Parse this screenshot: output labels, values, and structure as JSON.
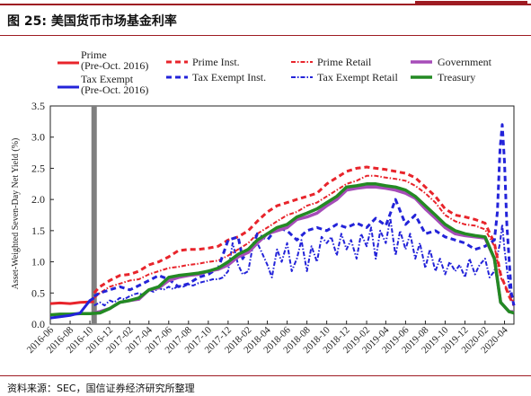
{
  "header": {
    "figure_title": "图 25: 美国货币市场基金利率",
    "source": "资料来源：SEC，国信证券经济研究所整理"
  },
  "colors": {
    "accent_rule": "#9e1b22",
    "prime": "#e8242b",
    "prime_inst": "#e8242b",
    "prime_retail": "#e8242b",
    "government": "#a64cb8",
    "tax_exempt": "#2323d9",
    "tax_exempt_inst": "#2323d9",
    "tax_exempt_retail": "#2323d9",
    "treasury": "#238a23",
    "divider": "#7f7f7f"
  },
  "chart_data": {
    "type": "line",
    "ylabel": "Asset-Weighted Seven-Day Net Yield (%)",
    "ylim": [
      0,
      3.5
    ],
    "yticks": [
      "0.0",
      "0.5",
      "1.0",
      "1.5",
      "2.0",
      "2.5",
      "3.0",
      "3.5"
    ],
    "xticks": [
      "2016-06",
      "2016-08",
      "2016-10",
      "2016-12",
      "2017-02",
      "2017-04",
      "2017-06",
      "2017-08",
      "2017-10",
      "2017-12",
      "2018-02",
      "2018-04",
      "2018-06",
      "2018-08",
      "2018-10",
      "2018-12",
      "2019-02",
      "2019-04",
      "2019-06",
      "2019-08",
      "2019-10",
      "2019-12",
      "2020-02",
      "2020-04"
    ],
    "x_start": "2016-06-01",
    "x_end": "2020-04-30",
    "reform_date": "2016-10-14",
    "grid": false,
    "legend_position": "top",
    "series": [
      {
        "name": "Prime (Pre-Oct. 2016)",
        "x": [
          "2016-06-01",
          "2016-07-01",
          "2016-08-01",
          "2016-09-01",
          "2016-10-14"
        ],
        "values": [
          0.33,
          0.34,
          0.33,
          0.35,
          0.36
        ]
      },
      {
        "name": "Prime Inst.",
        "x": [
          "2016-10-14",
          "2016-11-01",
          "2016-12-01",
          "2017-01-01",
          "2017-02-01",
          "2017-03-01",
          "2017-04-01",
          "2017-05-01",
          "2017-06-01",
          "2017-07-01",
          "2017-08-01",
          "2017-09-01",
          "2017-10-01",
          "2017-11-01",
          "2017-12-01",
          "2018-01-01",
          "2018-02-01",
          "2018-03-01",
          "2018-04-01",
          "2018-05-01",
          "2018-06-01",
          "2018-07-01",
          "2018-08-01",
          "2018-09-01",
          "2018-10-01",
          "2018-11-01",
          "2018-12-01",
          "2019-01-01",
          "2019-02-01",
          "2019-03-01",
          "2019-04-01",
          "2019-05-01",
          "2019-06-01",
          "2019-07-01",
          "2019-08-01",
          "2019-09-01",
          "2019-10-01",
          "2019-11-01",
          "2019-12-01",
          "2020-01-01",
          "2020-02-01",
          "2020-03-01",
          "2020-03-20",
          "2020-04-15",
          "2020-04-30"
        ],
        "values": [
          0.5,
          0.6,
          0.7,
          0.78,
          0.8,
          0.85,
          0.95,
          1.0,
          1.08,
          1.18,
          1.2,
          1.2,
          1.22,
          1.25,
          1.35,
          1.4,
          1.5,
          1.65,
          1.8,
          1.9,
          1.95,
          2.0,
          2.05,
          2.1,
          2.25,
          2.35,
          2.45,
          2.5,
          2.52,
          2.5,
          2.48,
          2.45,
          2.42,
          2.35,
          2.2,
          2.05,
          1.85,
          1.75,
          1.72,
          1.68,
          1.62,
          1.3,
          0.8,
          0.45,
          0.3
        ]
      },
      {
        "name": "Prime Retail",
        "x": [
          "2016-10-14",
          "2016-11-01",
          "2016-12-01",
          "2017-01-01",
          "2017-02-01",
          "2017-03-01",
          "2017-04-01",
          "2017-05-01",
          "2017-06-01",
          "2017-07-01",
          "2017-08-01",
          "2017-09-01",
          "2017-10-01",
          "2017-11-01",
          "2017-12-01",
          "2018-01-01",
          "2018-02-01",
          "2018-03-01",
          "2018-04-01",
          "2018-05-01",
          "2018-06-01",
          "2018-07-01",
          "2018-08-01",
          "2018-09-01",
          "2018-10-01",
          "2018-11-01",
          "2018-12-01",
          "2019-01-01",
          "2019-02-01",
          "2019-03-01",
          "2019-04-01",
          "2019-05-01",
          "2019-06-01",
          "2019-07-01",
          "2019-08-01",
          "2019-09-01",
          "2019-10-01",
          "2019-11-01",
          "2019-12-01",
          "2020-01-01",
          "2020-02-01",
          "2020-03-01",
          "2020-03-20",
          "2020-04-15",
          "2020-04-30"
        ],
        "values": [
          0.42,
          0.5,
          0.6,
          0.65,
          0.7,
          0.72,
          0.8,
          0.85,
          0.9,
          0.92,
          0.95,
          0.97,
          1.0,
          1.02,
          1.1,
          1.2,
          1.3,
          1.45,
          1.55,
          1.65,
          1.75,
          1.8,
          1.9,
          1.95,
          2.05,
          2.15,
          2.25,
          2.3,
          2.38,
          2.38,
          2.35,
          2.33,
          2.3,
          2.22,
          2.1,
          1.95,
          1.75,
          1.65,
          1.6,
          1.58,
          1.52,
          1.25,
          0.75,
          0.5,
          0.35
        ]
      },
      {
        "name": "Government",
        "x": [
          "2016-10-14",
          "2016-11-01",
          "2016-12-01",
          "2017-01-01",
          "2017-02-01",
          "2017-03-01",
          "2017-04-01",
          "2017-05-01",
          "2017-06-01",
          "2017-07-01",
          "2017-08-01",
          "2017-09-01",
          "2017-10-01",
          "2017-11-01",
          "2017-12-01",
          "2018-01-01",
          "2018-02-01",
          "2018-03-01",
          "2018-04-01",
          "2018-05-01",
          "2018-06-01",
          "2018-07-01",
          "2018-08-01",
          "2018-09-01",
          "2018-10-01",
          "2018-11-01",
          "2018-12-01",
          "2019-01-01",
          "2019-02-01",
          "2019-03-01",
          "2019-04-01",
          "2019-05-01",
          "2019-06-01",
          "2019-07-01",
          "2019-08-01",
          "2019-09-01",
          "2019-10-01",
          "2019-11-01",
          "2019-12-01",
          "2020-01-01",
          "2020-02-01",
          "2020-03-01",
          "2020-03-20",
          "2020-04-15",
          "2020-04-30"
        ],
        "values": [
          0.18,
          0.2,
          0.25,
          0.35,
          0.38,
          0.4,
          0.55,
          0.58,
          0.7,
          0.75,
          0.78,
          0.8,
          0.85,
          0.88,
          0.95,
          1.08,
          1.15,
          1.3,
          1.45,
          1.5,
          1.55,
          1.68,
          1.72,
          1.78,
          1.9,
          2.0,
          2.15,
          2.18,
          2.2,
          2.2,
          2.18,
          2.15,
          2.1,
          2.02,
          1.85,
          1.7,
          1.55,
          1.45,
          1.42,
          1.4,
          1.38,
          1.05,
          0.35,
          0.2,
          0.2
        ]
      },
      {
        "name": "Tax Exempt (Pre-Oct. 2016)",
        "x": [
          "2016-06-01",
          "2016-07-01",
          "2016-08-01",
          "2016-09-01",
          "2016-10-01",
          "2016-10-14"
        ],
        "values": [
          0.1,
          0.12,
          0.14,
          0.18,
          0.38,
          0.42
        ]
      },
      {
        "name": "Tax Exempt Inst.",
        "x": [
          "2016-10-14",
          "2016-11-01",
          "2016-12-01",
          "2017-01-01",
          "2017-02-01",
          "2017-03-01",
          "2017-04-01",
          "2017-05-01",
          "2017-06-01",
          "2017-07-01",
          "2017-08-01",
          "2017-09-01",
          "2017-10-01",
          "2017-11-01",
          "2017-12-01",
          "2018-01-01",
          "2018-01-15",
          "2018-02-01",
          "2018-02-15",
          "2018-03-01",
          "2018-04-01",
          "2018-05-01",
          "2018-06-01",
          "2018-07-01",
          "2018-08-01",
          "2018-09-01",
          "2018-10-01",
          "2018-11-01",
          "2018-12-01",
          "2019-01-01",
          "2019-02-01",
          "2019-03-01",
          "2019-04-01",
          "2019-05-01",
          "2019-06-01",
          "2019-07-01",
          "2019-08-01",
          "2019-09-01",
          "2019-10-01",
          "2019-11-01",
          "2019-12-01",
          "2020-01-01",
          "2020-02-01",
          "2020-03-01",
          "2020-03-10",
          "2020-03-18",
          "2020-03-25",
          "2020-04-01",
          "2020-04-08",
          "2020-04-15",
          "2020-04-22",
          "2020-04-30"
        ],
        "values": [
          0.45,
          0.5,
          0.55,
          0.6,
          0.55,
          0.62,
          0.7,
          0.78,
          0.72,
          0.6,
          0.65,
          0.75,
          0.8,
          0.9,
          1.35,
          1.4,
          1.05,
          1.2,
          1.25,
          1.45,
          1.35,
          1.55,
          1.5,
          1.35,
          1.5,
          1.55,
          1.5,
          1.6,
          1.55,
          1.62,
          1.55,
          1.7,
          1.58,
          2.0,
          1.6,
          1.75,
          1.45,
          1.5,
          1.4,
          1.35,
          1.3,
          1.2,
          1.25,
          1.35,
          1.8,
          2.8,
          3.2,
          2.6,
          1.6,
          1.05,
          0.5,
          0.3
        ]
      },
      {
        "name": "Tax Exempt Retail",
        "x": [
          "2016-10-14",
          "2016-11-01",
          "2016-11-15",
          "2016-12-01",
          "2016-12-15",
          "2017-01-01",
          "2017-01-15",
          "2017-02-01",
          "2017-02-15",
          "2017-03-01",
          "2017-03-15",
          "2017-04-01",
          "2017-04-15",
          "2017-05-01",
          "2017-05-15",
          "2017-06-01",
          "2017-06-15",
          "2017-07-01",
          "2017-07-15",
          "2017-08-01",
          "2017-08-15",
          "2017-09-01",
          "2017-09-15",
          "2017-10-01",
          "2017-10-15",
          "2017-11-01",
          "2017-11-15",
          "2017-12-01",
          "2017-12-15",
          "2018-01-01",
          "2018-01-15",
          "2018-02-01",
          "2018-02-15",
          "2018-03-01",
          "2018-03-15",
          "2018-04-01",
          "2018-04-15",
          "2018-05-01",
          "2018-05-15",
          "2018-06-01",
          "2018-06-15",
          "2018-07-01",
          "2018-07-15",
          "2018-08-01",
          "2018-08-15",
          "2018-09-01",
          "2018-09-15",
          "2018-10-01",
          "2018-10-15",
          "2018-11-01",
          "2018-11-15",
          "2018-12-01",
          "2018-12-15",
          "2019-01-01",
          "2019-01-15",
          "2019-02-01",
          "2019-02-15",
          "2019-03-01",
          "2019-03-15",
          "2019-04-01",
          "2019-04-15",
          "2019-05-01",
          "2019-05-15",
          "2019-06-01",
          "2019-06-15",
          "2019-07-01",
          "2019-07-15",
          "2019-08-01",
          "2019-08-15",
          "2019-09-01",
          "2019-09-15",
          "2019-10-01",
          "2019-10-15",
          "2019-11-01",
          "2019-11-15",
          "2019-12-01",
          "2019-12-15",
          "2020-01-01",
          "2020-01-15",
          "2020-02-01",
          "2020-02-15",
          "2020-03-01",
          "2020-03-10",
          "2020-03-18",
          "2020-03-25",
          "2020-04-01",
          "2020-04-08",
          "2020-04-15",
          "2020-04-22",
          "2020-04-30"
        ],
        "values": [
          0.3,
          0.35,
          0.3,
          0.38,
          0.35,
          0.42,
          0.4,
          0.45,
          0.48,
          0.5,
          0.46,
          0.55,
          0.52,
          0.58,
          0.55,
          0.6,
          0.56,
          0.62,
          0.6,
          0.64,
          0.62,
          0.66,
          0.68,
          0.7,
          0.72,
          0.72,
          0.75,
          0.85,
          1.3,
          0.95,
          0.8,
          0.85,
          1.25,
          1.3,
          1.15,
          0.95,
          0.75,
          1.2,
          1.0,
          1.3,
          0.85,
          1.05,
          1.35,
          0.85,
          1.25,
          1.0,
          1.4,
          1.3,
          1.4,
          1.1,
          1.45,
          1.2,
          1.35,
          1.05,
          1.45,
          1.25,
          1.55,
          1.05,
          1.5,
          1.3,
          1.7,
          1.1,
          1.5,
          1.2,
          1.45,
          1.05,
          1.3,
          0.9,
          1.2,
          0.85,
          1.05,
          0.8,
          1.0,
          0.85,
          0.95,
          0.75,
          1.05,
          0.8,
          0.95,
          1.05,
          0.75,
          0.85,
          1.1,
          1.3,
          1.6,
          1.2,
          0.9,
          0.6,
          0.4,
          0.3
        ]
      },
      {
        "name": "Treasury",
        "x": [
          "2016-06-01",
          "2016-07-01",
          "2016-08-01",
          "2016-09-01",
          "2016-10-01",
          "2016-11-01",
          "2016-12-01",
          "2017-01-01",
          "2017-02-01",
          "2017-03-01",
          "2017-04-01",
          "2017-05-01",
          "2017-06-01",
          "2017-07-01",
          "2017-08-01",
          "2017-09-01",
          "2017-10-01",
          "2017-11-01",
          "2017-12-01",
          "2018-01-01",
          "2018-02-01",
          "2018-03-01",
          "2018-04-01",
          "2018-05-01",
          "2018-06-01",
          "2018-07-01",
          "2018-08-01",
          "2018-09-01",
          "2018-10-01",
          "2018-11-01",
          "2018-12-01",
          "2019-01-01",
          "2019-02-01",
          "2019-03-01",
          "2019-04-01",
          "2019-05-01",
          "2019-06-01",
          "2019-07-01",
          "2019-08-01",
          "2019-09-01",
          "2019-10-01",
          "2019-11-01",
          "2019-12-01",
          "2020-01-01",
          "2020-02-01",
          "2020-03-01",
          "2020-03-20",
          "2020-04-15",
          "2020-04-30"
        ],
        "values": [
          0.15,
          0.16,
          0.16,
          0.17,
          0.17,
          0.18,
          0.25,
          0.35,
          0.38,
          0.42,
          0.55,
          0.6,
          0.75,
          0.78,
          0.8,
          0.82,
          0.85,
          0.9,
          1.0,
          1.12,
          1.2,
          1.35,
          1.45,
          1.55,
          1.6,
          1.72,
          1.78,
          1.85,
          1.95,
          2.05,
          2.2,
          2.22,
          2.25,
          2.25,
          2.22,
          2.2,
          2.15,
          2.05,
          1.9,
          1.75,
          1.6,
          1.5,
          1.45,
          1.42,
          1.4,
          1.05,
          0.35,
          0.2,
          0.18
        ]
      }
    ]
  }
}
